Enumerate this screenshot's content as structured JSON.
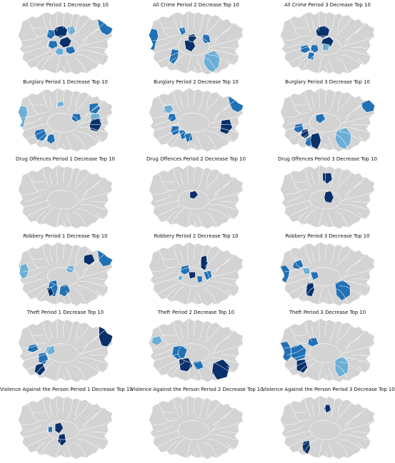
{
  "palette": {
    "dark": "#08306b",
    "mid": "#2171b5",
    "light": "#6baed6",
    "base": "#d3d3d3",
    "border": "#ffffff"
  },
  "panels": [
    {
      "title": "All Crime Period 1 Decrease Top 10",
      "highlights": [
        {
          "shape": 0,
          "level": "dark"
        },
        {
          "shape": 1,
          "level": "dark"
        },
        {
          "shape": 2,
          "level": "mid"
        },
        {
          "shape": 3,
          "level": "light"
        },
        {
          "shape": 4,
          "level": "mid"
        },
        {
          "shape": 5,
          "level": "mid"
        },
        {
          "shape": 6,
          "level": "light"
        },
        {
          "shape": 7,
          "level": "mid"
        }
      ]
    },
    {
      "title": "All Crime Period 2 Decrease Top 10",
      "highlights": [
        {
          "shape": 8,
          "level": "mid"
        },
        {
          "shape": 9,
          "level": "dark"
        },
        {
          "shape": 10,
          "level": "mid"
        },
        {
          "shape": 11,
          "level": "mid"
        },
        {
          "shape": 12,
          "level": "light"
        },
        {
          "shape": 13,
          "level": "mid"
        },
        {
          "shape": 14,
          "level": "dark"
        }
      ]
    },
    {
      "title": "All Crime Period 3 Decrease Top 10",
      "highlights": [
        {
          "shape": 0,
          "level": "dark"
        },
        {
          "shape": 1,
          "level": "dark"
        },
        {
          "shape": 15,
          "level": "mid"
        },
        {
          "shape": 16,
          "level": "mid"
        },
        {
          "shape": 17,
          "level": "light"
        },
        {
          "shape": 18,
          "level": "mid"
        }
      ]
    },
    {
      "title": "Burglary Period 1 Decrease Top 10",
      "highlights": [
        {
          "shape": 8,
          "level": "light"
        },
        {
          "shape": 19,
          "level": "mid"
        },
        {
          "shape": 20,
          "level": "mid"
        },
        {
          "shape": 21,
          "level": "mid"
        },
        {
          "shape": 22,
          "level": "light"
        },
        {
          "shape": 23,
          "level": "mid"
        },
        {
          "shape": 24,
          "level": "light"
        },
        {
          "shape": 25,
          "level": "dark"
        }
      ]
    },
    {
      "title": "Burglary Period 2 Decrease Top 10",
      "highlights": [
        {
          "shape": 26,
          "level": "light"
        },
        {
          "shape": 27,
          "level": "mid"
        },
        {
          "shape": 28,
          "level": "mid"
        },
        {
          "shape": 29,
          "level": "mid"
        },
        {
          "shape": 30,
          "level": "mid"
        },
        {
          "shape": 31,
          "level": "dark"
        },
        {
          "shape": 7,
          "level": "mid"
        }
      ]
    },
    {
      "title": "Burglary Period 3 Decrease Top 10",
      "highlights": [
        {
          "shape": 32,
          "level": "mid"
        },
        {
          "shape": 33,
          "level": "mid"
        },
        {
          "shape": 34,
          "level": "dark"
        },
        {
          "shape": 35,
          "level": "mid"
        },
        {
          "shape": 36,
          "level": "dark"
        },
        {
          "shape": 12,
          "level": "light"
        },
        {
          "shape": 37,
          "level": "mid"
        }
      ]
    },
    {
      "title": "Drug Offences Period 1 Decrease Top 10",
      "highlights": []
    },
    {
      "title": "Drug Offences Period 2 Decrease Top 10",
      "highlights": [
        {
          "shape": 38,
          "level": "dark"
        }
      ]
    },
    {
      "title": "Drug Offences Period 3 Decrease Top 10",
      "highlights": [
        {
          "shape": 39,
          "level": "dark"
        },
        {
          "shape": 40,
          "level": "dark"
        }
      ]
    },
    {
      "title": "Robbery Period 1 Decrease Top 10",
      "highlights": [
        {
          "shape": 41,
          "level": "light"
        },
        {
          "shape": 42,
          "level": "dark"
        },
        {
          "shape": 43,
          "level": "mid"
        },
        {
          "shape": 44,
          "level": "light"
        },
        {
          "shape": 45,
          "level": "mid"
        },
        {
          "shape": 46,
          "level": "dark"
        },
        {
          "shape": 47,
          "level": "mid"
        }
      ]
    },
    {
      "title": "Robbery Period 2 Decrease Top 10",
      "highlights": [
        {
          "shape": 48,
          "level": "mid"
        },
        {
          "shape": 49,
          "level": "dark"
        },
        {
          "shape": 50,
          "level": "mid"
        },
        {
          "shape": 51,
          "level": "dark"
        },
        {
          "shape": 52,
          "level": "mid"
        },
        {
          "shape": 53,
          "level": "light"
        }
      ]
    },
    {
      "title": "Robbery Period 3 Decrease Top 10",
      "highlights": [
        {
          "shape": 54,
          "level": "mid"
        },
        {
          "shape": 55,
          "level": "mid"
        },
        {
          "shape": 56,
          "level": "light"
        },
        {
          "shape": 57,
          "level": "mid"
        },
        {
          "shape": 58,
          "level": "dark"
        },
        {
          "shape": 59,
          "level": "mid"
        }
      ]
    },
    {
      "title": "Theft Period 1 Decrease Top 10",
      "highlights": [
        {
          "shape": 60,
          "level": "mid"
        },
        {
          "shape": 61,
          "level": "dark"
        },
        {
          "shape": 62,
          "level": "mid"
        },
        {
          "shape": 63,
          "level": "light"
        },
        {
          "shape": 64,
          "level": "dark"
        }
      ]
    },
    {
      "title": "Theft Period 2 Decrease Top 10",
      "highlights": [
        {
          "shape": 65,
          "level": "light"
        },
        {
          "shape": 66,
          "level": "mid"
        },
        {
          "shape": 67,
          "level": "dark"
        },
        {
          "shape": 68,
          "level": "mid"
        },
        {
          "shape": 69,
          "level": "dark"
        }
      ]
    },
    {
      "title": "Theft Period 3 Decrease Top 10",
      "highlights": [
        {
          "shape": 70,
          "level": "mid"
        },
        {
          "shape": 71,
          "level": "mid"
        },
        {
          "shape": 72,
          "level": "dark"
        },
        {
          "shape": 73,
          "level": "mid"
        },
        {
          "shape": 74,
          "level": "light"
        }
      ]
    },
    {
      "title": "Violence Against the Person Period 1 Decrease Top 10",
      "highlights": [
        {
          "shape": 75,
          "level": "dark"
        },
        {
          "shape": 76,
          "level": "mid"
        },
        {
          "shape": 77,
          "level": "dark"
        }
      ]
    },
    {
      "title": "Violence Against the Person Period 2 Decrease Top 10",
      "highlights": []
    },
    {
      "title": "Violence Against the Person Period 3 Decrease Top 10",
      "highlights": [
        {
          "shape": 78,
          "level": "dark"
        },
        {
          "shape": 79,
          "level": "dark"
        }
      ]
    }
  ]
}
